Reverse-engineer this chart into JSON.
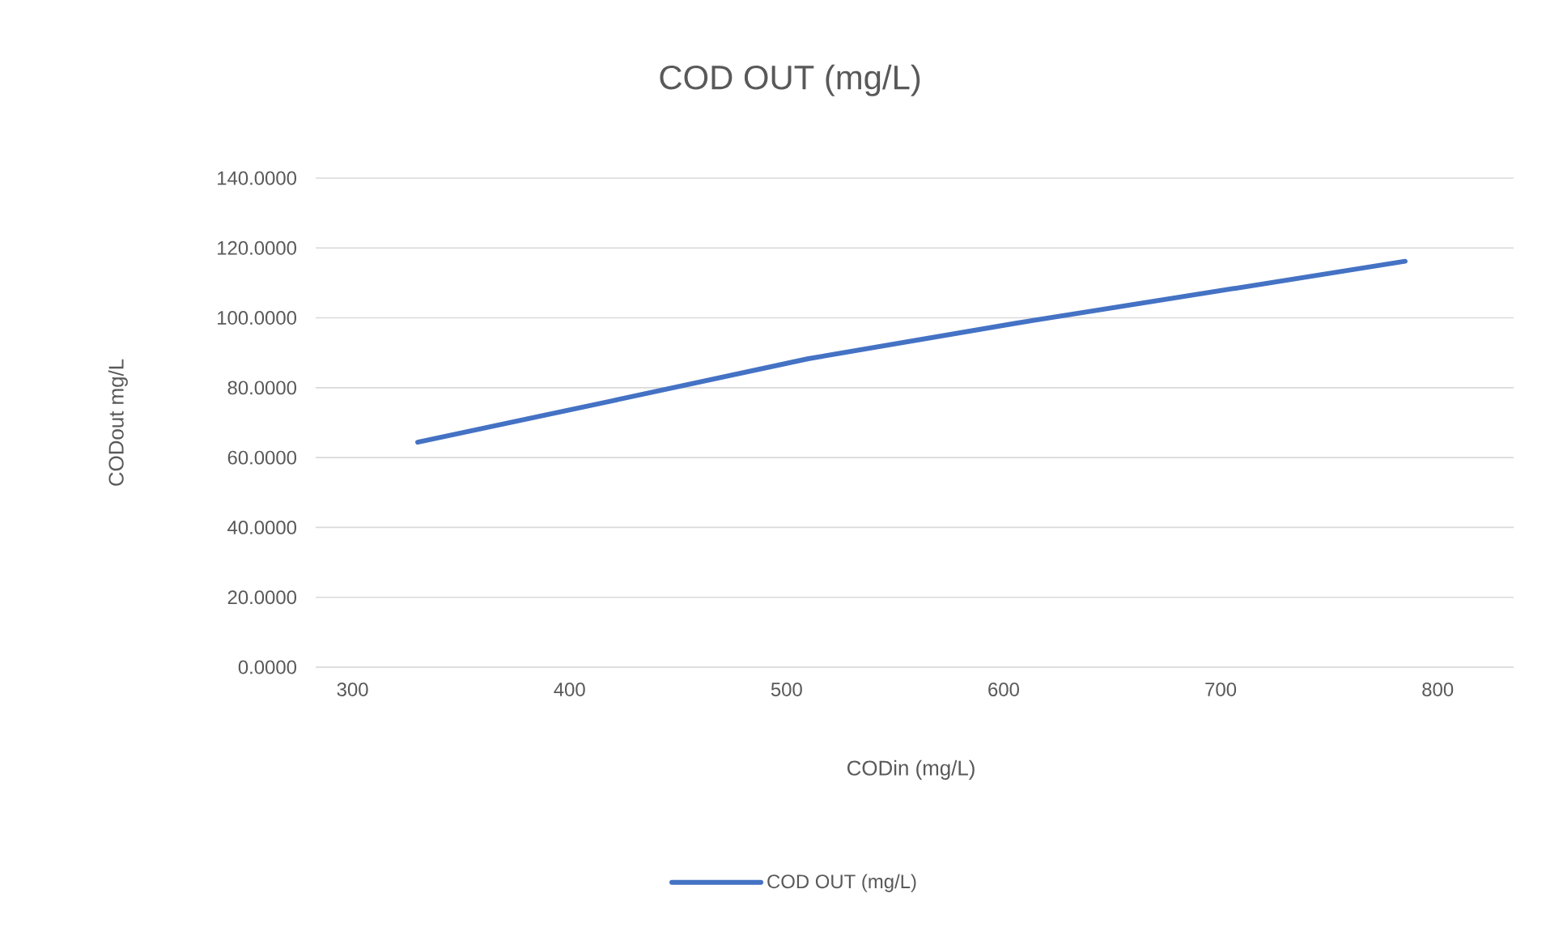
{
  "chart_data": {
    "type": "line",
    "title": "COD OUT (mg/L)",
    "xlabel": "CODin (mg/L)",
    "ylabel": "CODout mg/L",
    "x": [
      330,
      420,
      510,
      605,
      785
    ],
    "series": [
      {
        "name": "COD OUT (mg/L)",
        "color": "#4472c4",
        "values": [
          64.4,
          76.3,
          88.3,
          98.4,
          116.2
        ]
      }
    ],
    "xlim": [
      283,
      835
    ],
    "ylim": [
      0,
      140
    ],
    "xticks": [
      300,
      400,
      500,
      600,
      700,
      800
    ],
    "yticks": [
      {
        "value": 0,
        "label": "0.0000"
      },
      {
        "value": 20,
        "label": "20.0000"
      },
      {
        "value": 40,
        "label": "40.0000"
      },
      {
        "value": 60,
        "label": "60.0000"
      },
      {
        "value": 80,
        "label": "80.0000"
      },
      {
        "value": 100,
        "label": "100.0000"
      },
      {
        "value": 120,
        "label": "120.0000"
      },
      {
        "value": 140,
        "label": "140.0000"
      }
    ],
    "grid": "y",
    "legend": "bottom"
  }
}
